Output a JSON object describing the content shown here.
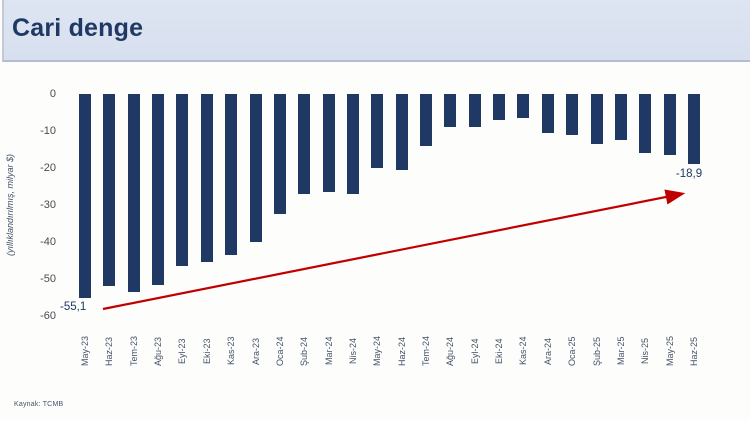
{
  "header": {
    "title": "Cari denge"
  },
  "footer": {
    "source": "Kaynak: TCMB"
  },
  "chart_data": {
    "type": "bar",
    "title": "Cari denge",
    "xlabel": "",
    "ylabel": "(yıllıklandırılmış, milyar $)",
    "ylim": [
      -60,
      0
    ],
    "yticks": [
      0,
      -10,
      -20,
      -30,
      -40,
      -50,
      -60
    ],
    "grid": false,
    "legend": "none",
    "bar_color": "#1f3864",
    "arrow_color": "#c00000",
    "label_color": "#1f3864",
    "categories": [
      "May-23",
      "Haz-23",
      "Tem-23",
      "Ağu-23",
      "Eyl-23",
      "Eki-23",
      "Kas-23",
      "Ara-23",
      "Oca-24",
      "Şub-24",
      "Mar-24",
      "Nis-24",
      "May-24",
      "Haz-24",
      "Tem-24",
      "Ağu-24",
      "Eyl-24",
      "Eki-24",
      "Kas-24",
      "Ara-24",
      "Oca-25",
      "Şub-25",
      "Mar-25",
      "Nis-25",
      "May-25",
      "Haz-25"
    ],
    "values": [
      -55.1,
      -52,
      -53.5,
      -51.5,
      -46.5,
      -45.5,
      -43.5,
      -40,
      -32.5,
      -27,
      -26.5,
      -27,
      -20,
      -20.5,
      -14,
      -9,
      -9,
      -7,
      -6.5,
      -10.5,
      -11,
      -13.5,
      -12.5,
      -16,
      -16.5,
      -18.9
    ],
    "annotations": {
      "first": "-55,1",
      "last": "-18,9"
    }
  }
}
